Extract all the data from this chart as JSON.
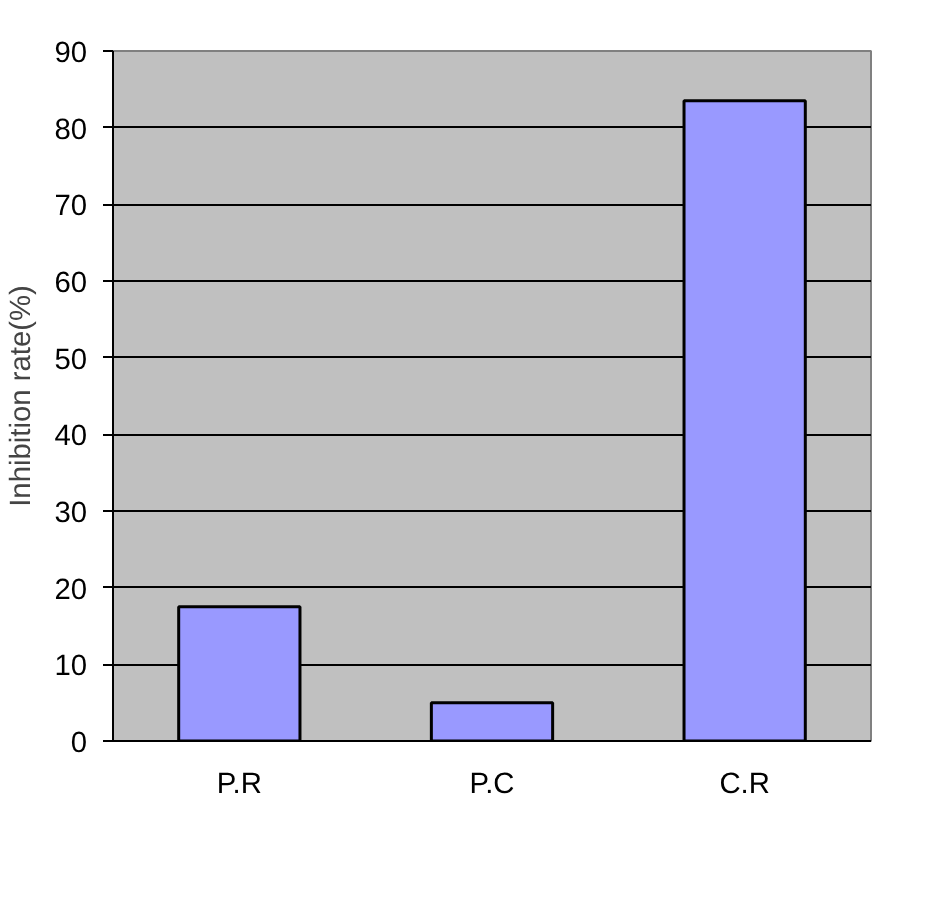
{
  "chart_data": {
    "type": "bar",
    "ylabel": "Inhibition rate(%)",
    "categories": [
      "P.R",
      "P.C",
      "C.R"
    ],
    "values": [
      17.5,
      5,
      83.5
    ],
    "color": "#9999ff",
    "ylim": [
      0,
      90
    ],
    "yticks": [
      0,
      10,
      20,
      30,
      40,
      50,
      60,
      70,
      80,
      90
    ],
    "grid": "y"
  }
}
